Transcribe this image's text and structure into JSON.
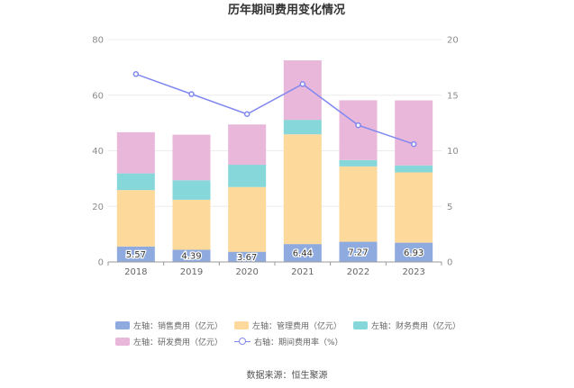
{
  "chart_data": {
    "type": "bar",
    "title": "历年期间费用变化情况",
    "categories": [
      "2018",
      "2019",
      "2020",
      "2021",
      "2022",
      "2023"
    ],
    "left_axis": {
      "min": 0,
      "max": 80,
      "ticks": [
        "0",
        "20",
        "40",
        "60",
        "80"
      ]
    },
    "right_axis": {
      "min": 0,
      "max": 20,
      "ticks": [
        "0",
        "5",
        "10",
        "15",
        "20"
      ]
    },
    "series": [
      {
        "name": "左轴：销售费用（亿元）",
        "axis": "left",
        "stack": true,
        "color": "#8eaadf",
        "values": [
          5.57,
          4.39,
          3.67,
          6.44,
          7.27,
          6.93
        ],
        "labels": [
          "5.57",
          "4.39",
          "3.67",
          "6.44",
          "7.27",
          "6.93"
        ]
      },
      {
        "name": "左轴：管理费用（亿元）",
        "axis": "left",
        "stack": true,
        "color": "#fdd99b",
        "values": [
          20.3,
          18.0,
          23.3,
          39.5,
          27.1,
          25.3
        ]
      },
      {
        "name": "左轴：财务费用（亿元）",
        "axis": "left",
        "stack": true,
        "color": "#86d7da",
        "values": [
          6.0,
          7.0,
          8.0,
          5.2,
          2.3,
          2.5
        ]
      },
      {
        "name": "左轴：研发费用（亿元）",
        "axis": "left",
        "stack": true,
        "color": "#e8b7da",
        "values": [
          14.8,
          16.4,
          14.5,
          21.4,
          21.5,
          23.4
        ]
      },
      {
        "name": "右轴：期间费用率（%）",
        "axis": "right",
        "type": "line",
        "color": "#8088f0",
        "values": [
          16.9,
          15.1,
          13.3,
          16.0,
          12.3,
          10.6
        ]
      }
    ]
  },
  "source": "数据来源：恒生聚源"
}
